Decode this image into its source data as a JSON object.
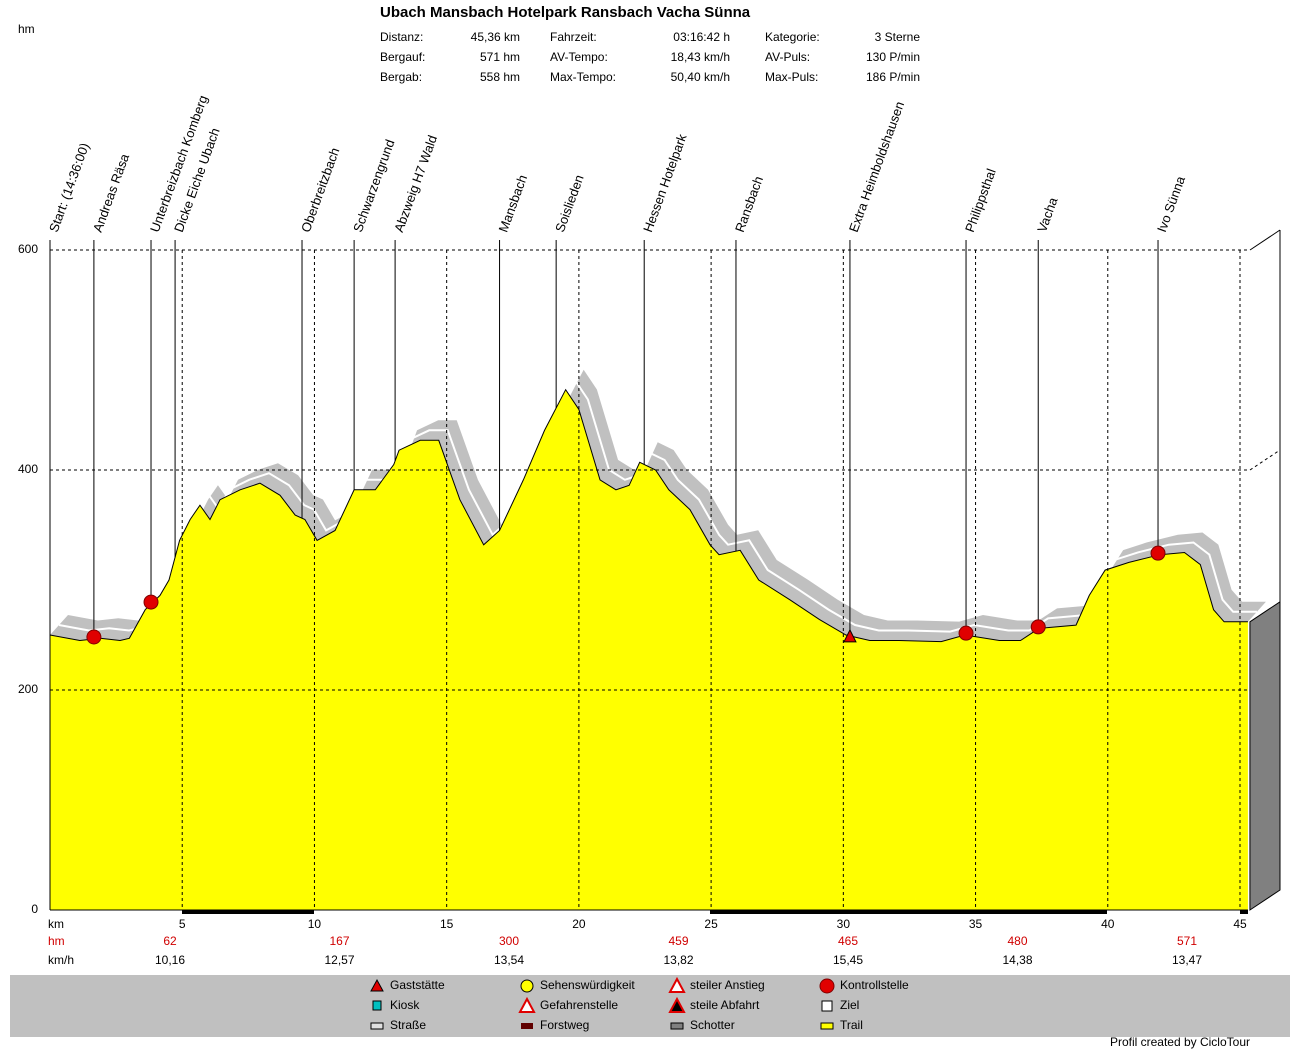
{
  "chart_data": {
    "type": "area",
    "title": "Ubach Mansbach Hotelpark Ransbach Vacha Sünna",
    "stats": [
      [
        "Distanz:",
        "45,36 km"
      ],
      [
        "Bergauf:",
        "571 hm"
      ],
      [
        "Bergab:",
        "558 hm"
      ],
      [
        "Fahrzeit:",
        "03:16:42 h"
      ],
      [
        "AV-Tempo:",
        "18,43 km/h"
      ],
      [
        "Max-Tempo:",
        "50,40 km/h"
      ],
      [
        "Kategorie:",
        "3 Sterne"
      ],
      [
        "AV-Puls:",
        "130 P/min"
      ],
      [
        "Max-Puls:",
        "186 P/min"
      ]
    ],
    "y_label": "hm",
    "x_label": "km",
    "x": [
      0,
      1.13,
      1.9,
      2.65,
      3.0,
      3.6,
      4.16,
      4.5,
      4.9,
      5.3,
      5.67,
      6.05,
      6.43,
      7.19,
      7.94,
      8.7,
      9.27,
      9.64,
      10.1,
      10.78,
      11.5,
      12.3,
      13.0,
      13.2,
      14.0,
      14.7,
      15.5,
      16.4,
      17.0,
      17.9,
      18.7,
      19.5,
      20.0,
      20.8,
      21.4,
      21.9,
      22.3,
      22.9,
      23.4,
      24.2,
      24.96,
      25.3,
      26.1,
      26.8,
      27.98,
      29.1,
      30.1,
      31.0,
      32.1,
      33.7,
      34.6,
      35.9,
      36.7,
      37.4,
      38.8,
      39.3,
      39.9,
      40.8,
      41.97,
      42.9,
      43.5,
      44.0,
      44.4,
      45.3
    ],
    "values": [
      250,
      245,
      247,
      245,
      247,
      273,
      286,
      300,
      336,
      355,
      368,
      355,
      373,
      382,
      388,
      377,
      359,
      355,
      336,
      345,
      382,
      382,
      405,
      418,
      427,
      427,
      373,
      332,
      345,
      391,
      436,
      473,
      455,
      391,
      382,
      386,
      407,
      400,
      382,
      364,
      332,
      323,
      327,
      300,
      282,
      264,
      250,
      245,
      245,
      244,
      250,
      245,
      245,
      256,
      259,
      286,
      309,
      316,
      323,
      325,
      314,
      273,
      262,
      262
    ],
    "color": "#ffff00",
    "xlim": [
      0,
      45
    ],
    "ylim": [
      0,
      600
    ],
    "xticks": [
      5,
      10,
      15,
      20,
      25,
      30,
      35,
      40,
      45
    ],
    "yticks": [
      0,
      200,
      400,
      600
    ],
    "grid": true,
    "waypoints": [
      {
        "label": "Start: (14:36:00)",
        "km": 0
      },
      {
        "label": "Andreas Räsa",
        "km": 1.66
      },
      {
        "label": "Unterbreizbach Komberg",
        "km": 3.82
      },
      {
        "label": "Dicke Eiche Ubach",
        "km": 4.73
      },
      {
        "label": "Oberbreitzbach",
        "km": 9.53
      },
      {
        "label": "Schwarzengrund",
        "km": 11.5
      },
      {
        "label": "Abzweig H7 Wald",
        "km": 13.05
      },
      {
        "label": "Mansbach",
        "km": 17.0
      },
      {
        "label": "Soislieden",
        "km": 19.14
      },
      {
        "label": "Hessen Hotelpark",
        "km": 22.47
      },
      {
        "label": "Ransbach",
        "km": 25.94
      },
      {
        "label": "Extra Heimboldshausen",
        "km": 30.25
      },
      {
        "label": "Philippsthal",
        "km": 34.64
      },
      {
        "label": "Vacha",
        "km": 37.37
      },
      {
        "label": "Ivo Sünna",
        "km": 41.9
      }
    ],
    "climb_label": "hm",
    "climb": [
      62,
      167,
      300,
      459,
      465,
      480,
      571
    ],
    "speed_label": "km/h",
    "speed": [
      {
        "value": 10.16,
        "label": "10,16"
      },
      {
        "value": 12.57,
        "label": "12,57"
      },
      {
        "value": 13.54,
        "label": "13,54"
      },
      {
        "value": 13.82,
        "label": "13,82"
      },
      {
        "value": 15.45,
        "label": "15,45"
      },
      {
        "value": 14.38,
        "label": "14,38"
      },
      {
        "value": 13.47,
        "label": "13,47"
      }
    ],
    "legend": [
      "Gaststätte",
      "Kiosk",
      "Straße",
      "Sehenswürdigkeit",
      "Gefahrenstelle",
      "Forstweg",
      "steiler Anstieg",
      "steile Abfahrt",
      "Schotter",
      "Kontrollstelle",
      "Ziel",
      "Trail"
    ],
    "credit": "Profil created by CicloTour"
  }
}
